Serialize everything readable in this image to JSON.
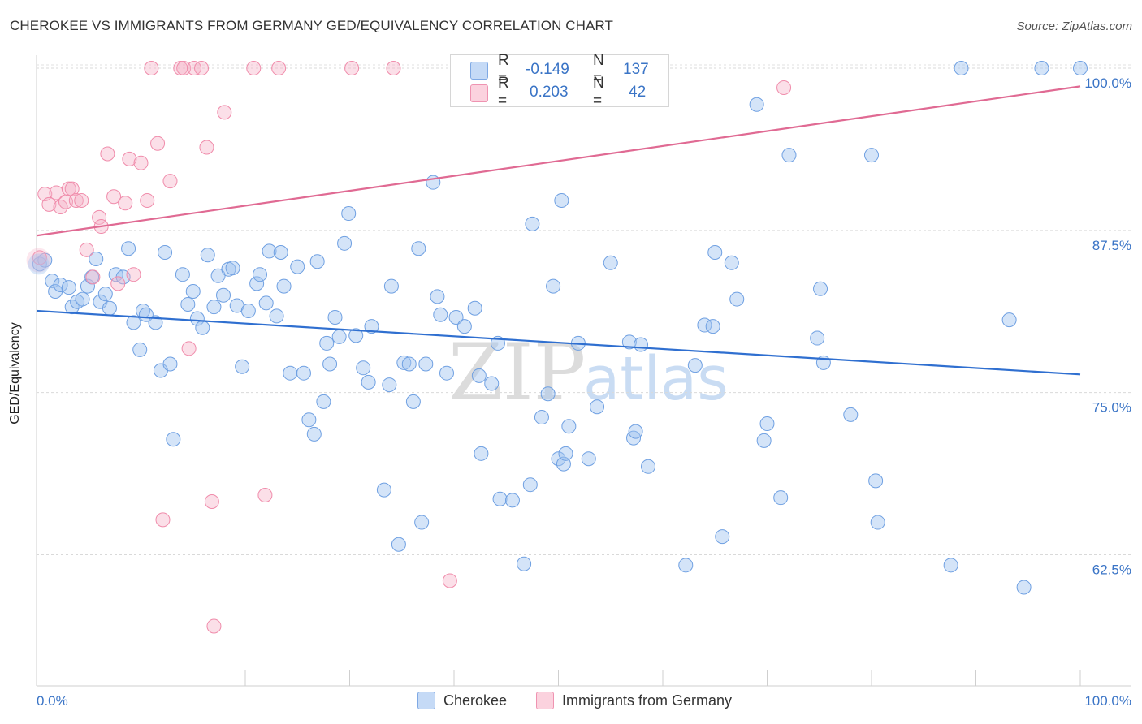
{
  "title": "CHEROKEE VS IMMIGRANTS FROM GERMANY GED/EQUIVALENCY CORRELATION CHART",
  "source": "Source: ZipAtlas.com",
  "stats": {
    "rows": [
      {
        "r_label": "R =",
        "r_value": "-0.149",
        "n_label": "N =",
        "n_value": "137",
        "color": "#9bbfee"
      },
      {
        "r_label": "R =",
        "r_value": "0.203",
        "n_label": "N =",
        "n_value": "42",
        "color": "#f4a9c0"
      }
    ]
  },
  "legend": {
    "items": [
      {
        "label": "Cherokee",
        "color": "#9bbfee"
      },
      {
        "label": "Immigrants from Germany",
        "color": "#f4a9c0"
      }
    ]
  },
  "chart_data": {
    "type": "scatter",
    "title": "CHEROKEE VS IMMIGRANTS FROM GERMANY GED/EQUIVALENCY CORRELATION CHART",
    "xlabel": "",
    "ylabel": "GED/Equivalency",
    "xlim": [
      0,
      100
    ],
    "ylim": [
      52.4,
      101.0
    ],
    "x_tick_labels": [
      "0.0%",
      "100.0%"
    ],
    "y_ticks": [
      62.5,
      75.0,
      87.5,
      100.0
    ],
    "y_tick_labels": [
      "62.5%",
      "75.0%",
      "87.5%",
      "100.0%"
    ],
    "grid": true,
    "legend_position": "bottom",
    "watermark": {
      "zip": "ZIP",
      "atlas": "atlas"
    },
    "series": [
      {
        "name": "Cherokee",
        "color": "#6fa0e2",
        "trend": {
          "x0": 0,
          "y0": 81.3,
          "x1": 100,
          "y1": 76.4,
          "color": "#2f6fd0"
        },
        "points": [
          [
            0.3,
            84.9
          ],
          [
            0.8,
            85.2
          ],
          [
            1.5,
            83.6
          ],
          [
            1.8,
            82.8
          ],
          [
            2.3,
            83.3
          ],
          [
            3.1,
            83.1
          ],
          [
            3.4,
            81.6
          ],
          [
            3.9,
            82.0
          ],
          [
            4.4,
            82.2
          ],
          [
            4.9,
            83.2
          ],
          [
            5.3,
            83.9
          ],
          [
            5.7,
            85.3
          ],
          [
            6.1,
            82.0
          ],
          [
            6.6,
            82.6
          ],
          [
            7.0,
            81.5
          ],
          [
            7.6,
            84.1
          ],
          [
            8.3,
            83.9
          ],
          [
            8.8,
            86.1
          ],
          [
            9.3,
            80.4
          ],
          [
            9.9,
            78.3
          ],
          [
            10.2,
            81.3
          ],
          [
            10.5,
            81.0
          ],
          [
            11.4,
            80.4
          ],
          [
            11.9,
            76.7
          ],
          [
            12.3,
            85.8
          ],
          [
            12.8,
            77.2
          ],
          [
            13.1,
            71.4
          ],
          [
            14.0,
            84.1
          ],
          [
            14.5,
            81.8
          ],
          [
            15.0,
            82.8
          ],
          [
            15.4,
            80.7
          ],
          [
            15.9,
            80.0
          ],
          [
            16.4,
            85.6
          ],
          [
            17.0,
            81.6
          ],
          [
            17.4,
            84.0
          ],
          [
            17.9,
            82.5
          ],
          [
            18.4,
            84.5
          ],
          [
            18.8,
            84.6
          ],
          [
            19.2,
            81.7
          ],
          [
            19.7,
            77.0
          ],
          [
            20.3,
            81.3
          ],
          [
            21.1,
            83.4
          ],
          [
            21.4,
            84.1
          ],
          [
            22.0,
            81.9
          ],
          [
            22.3,
            85.9
          ],
          [
            23.0,
            80.9
          ],
          [
            23.4,
            85.8
          ],
          [
            23.7,
            83.2
          ],
          [
            24.3,
            76.5
          ],
          [
            25.0,
            84.7
          ],
          [
            25.6,
            76.5
          ],
          [
            26.1,
            72.9
          ],
          [
            26.6,
            71.8
          ],
          [
            26.9,
            85.1
          ],
          [
            27.5,
            74.3
          ],
          [
            27.8,
            78.8
          ],
          [
            28.1,
            77.2
          ],
          [
            28.6,
            80.8
          ],
          [
            29.0,
            79.3
          ],
          [
            29.5,
            86.5
          ],
          [
            29.9,
            88.8
          ],
          [
            30.6,
            79.4
          ],
          [
            31.3,
            76.9
          ],
          [
            31.8,
            75.8
          ],
          [
            32.1,
            80.1
          ],
          [
            33.3,
            67.5
          ],
          [
            33.8,
            75.6
          ],
          [
            34.0,
            83.2
          ],
          [
            34.7,
            63.3
          ],
          [
            35.2,
            77.3
          ],
          [
            35.7,
            77.2
          ],
          [
            36.1,
            74.3
          ],
          [
            36.6,
            86.1
          ],
          [
            36.9,
            65.0
          ],
          [
            37.3,
            77.2
          ],
          [
            38.0,
            91.2
          ],
          [
            38.4,
            82.4
          ],
          [
            38.7,
            81.0
          ],
          [
            39.3,
            76.5
          ],
          [
            40.2,
            80.8
          ],
          [
            41.0,
            80.1
          ],
          [
            42.0,
            81.5
          ],
          [
            42.4,
            76.3
          ],
          [
            42.6,
            70.3
          ],
          [
            43.6,
            75.7
          ],
          [
            44.2,
            78.8
          ],
          [
            44.4,
            66.8
          ],
          [
            45.6,
            66.7
          ],
          [
            46.7,
            61.8
          ],
          [
            47.3,
            67.9
          ],
          [
            47.5,
            88.0
          ],
          [
            48.4,
            73.1
          ],
          [
            49.0,
            74.9
          ],
          [
            49.5,
            83.2
          ],
          [
            50.0,
            69.9
          ],
          [
            50.3,
            89.8
          ],
          [
            50.5,
            69.5
          ],
          [
            50.7,
            70.3
          ],
          [
            51.0,
            72.4
          ],
          [
            51.9,
            78.8
          ],
          [
            52.9,
            69.9
          ],
          [
            53.7,
            73.9
          ],
          [
            55.0,
            85.0
          ],
          [
            56.8,
            78.9
          ],
          [
            57.2,
            71.5
          ],
          [
            57.4,
            72.0
          ],
          [
            57.9,
            78.7
          ],
          [
            58.6,
            69.3
          ],
          [
            62.2,
            61.7
          ],
          [
            63.1,
            77.1
          ],
          [
            64.0,
            80.2
          ],
          [
            64.8,
            80.1
          ],
          [
            65.0,
            85.8
          ],
          [
            65.7,
            63.9
          ],
          [
            66.6,
            85.0
          ],
          [
            67.1,
            82.2
          ],
          [
            69.0,
            97.2
          ],
          [
            69.7,
            71.3
          ],
          [
            70.0,
            72.6
          ],
          [
            71.3,
            66.9
          ],
          [
            72.1,
            93.3
          ],
          [
            74.8,
            79.2
          ],
          [
            75.1,
            83.0
          ],
          [
            75.4,
            77.3
          ],
          [
            78.0,
            73.3
          ],
          [
            80.0,
            93.3
          ],
          [
            80.4,
            68.2
          ],
          [
            80.6,
            65.0
          ],
          [
            87.6,
            61.7
          ],
          [
            88.6,
            100.0
          ],
          [
            93.2,
            80.6
          ],
          [
            94.6,
            60.0
          ],
          [
            96.3,
            100.0
          ],
          [
            100.0,
            100.0
          ]
        ]
      },
      {
        "name": "Immigrants from Germany",
        "color": "#f08cab",
        "trend": {
          "x0": 0,
          "y0": 87.1,
          "x1": 100,
          "y1": 98.6,
          "color": "#e06a93"
        },
        "points": [
          [
            0.3,
            85.4
          ],
          [
            0.8,
            90.3
          ],
          [
            1.2,
            89.5
          ],
          [
            1.9,
            90.4
          ],
          [
            2.3,
            89.3
          ],
          [
            2.8,
            89.7
          ],
          [
            3.1,
            90.7
          ],
          [
            3.4,
            90.7
          ],
          [
            3.8,
            89.8
          ],
          [
            4.3,
            89.8
          ],
          [
            4.8,
            86.0
          ],
          [
            5.4,
            83.9
          ],
          [
            6.0,
            88.5
          ],
          [
            6.2,
            87.8
          ],
          [
            6.8,
            93.4
          ],
          [
            7.4,
            90.1
          ],
          [
            7.8,
            83.4
          ],
          [
            8.5,
            89.6
          ],
          [
            8.9,
            93.0
          ],
          [
            9.3,
            84.1
          ],
          [
            10.0,
            92.7
          ],
          [
            10.6,
            89.8
          ],
          [
            11.0,
            100.0
          ],
          [
            11.6,
            94.2
          ],
          [
            12.1,
            65.2
          ],
          [
            12.8,
            91.3
          ],
          [
            13.8,
            100.0
          ],
          [
            14.1,
            100.0
          ],
          [
            14.6,
            78.4
          ],
          [
            15.1,
            100.0
          ],
          [
            15.8,
            100.0
          ],
          [
            16.3,
            93.9
          ],
          [
            16.8,
            66.6
          ],
          [
            17.0,
            57.0
          ],
          [
            18.0,
            96.6
          ],
          [
            20.8,
            100.0
          ],
          [
            21.9,
            67.1
          ],
          [
            23.2,
            100.0
          ],
          [
            30.2,
            100.0
          ],
          [
            34.2,
            100.0
          ],
          [
            39.6,
            60.5
          ],
          [
            71.6,
            98.5
          ]
        ]
      }
    ]
  }
}
